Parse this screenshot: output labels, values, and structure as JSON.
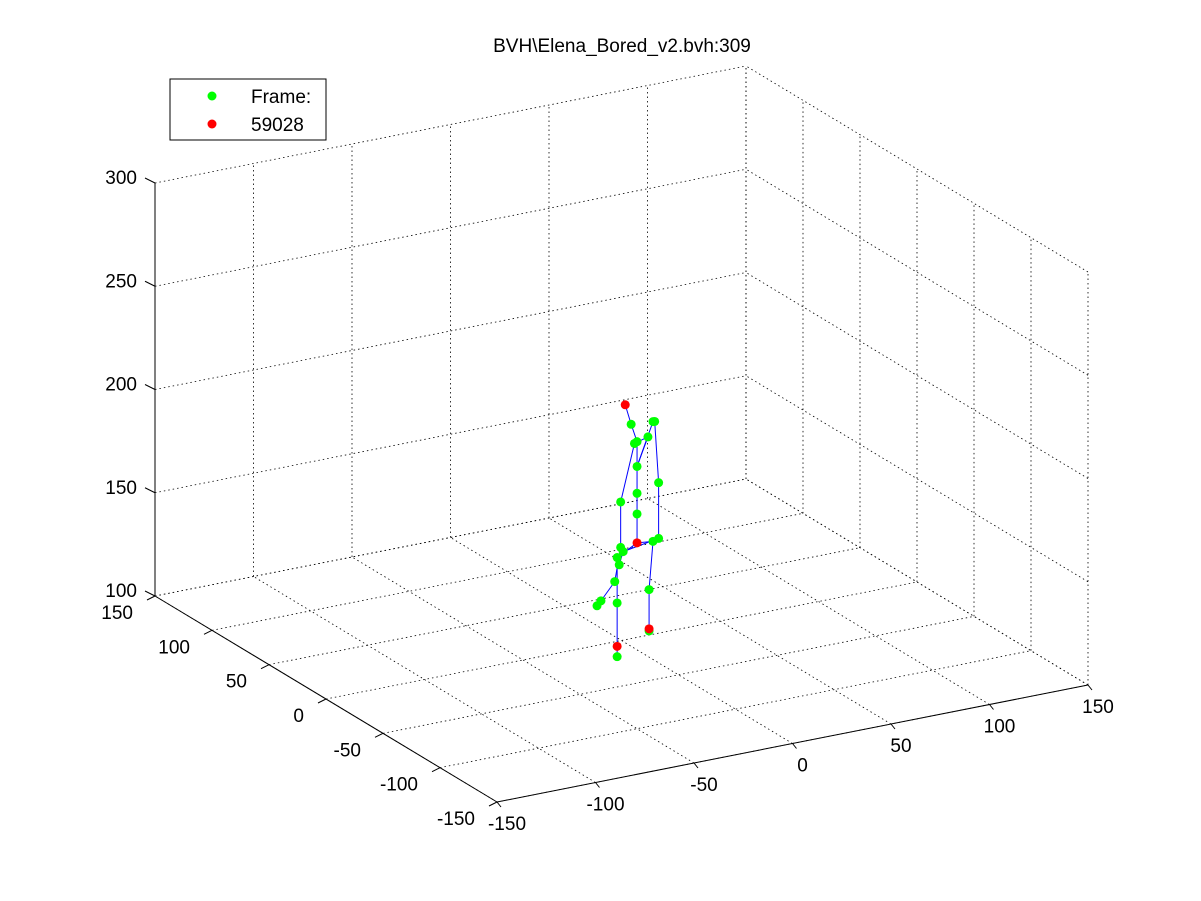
{
  "chart_data": {
    "type": "scatter",
    "plot_kind": "3d-skeleton",
    "title": "BVH\\Elena_Bored_v2.bvh:309",
    "xlim": [
      -150,
      150
    ],
    "ylim": [
      -150,
      150
    ],
    "zlim": [
      100,
      300
    ],
    "x_ticks": [
      "-150",
      "-100",
      "-50",
      "0",
      "50",
      "100",
      "150"
    ],
    "y_ticks": [
      "-150",
      "-100",
      "-50",
      "0",
      "50",
      "100",
      "150"
    ],
    "z_ticks": [
      "100",
      "150",
      "200",
      "250",
      "300"
    ],
    "grid": true,
    "legend_position": "top-left",
    "legend": [
      {
        "label": "Frame:",
        "color": "#00ff00"
      },
      {
        "label": "59028",
        "color": "#ff0000"
      }
    ],
    "colors": {
      "joint": "#00ff00",
      "end_site": "#ff0000",
      "bone": "#0000ff",
      "grid": "#000000"
    },
    "joints": [
      {
        "id": "hips",
        "x": 5,
        "y": -5,
        "z": 148,
        "kind": "root"
      },
      {
        "id": "spine",
        "x": 5,
        "y": -5,
        "z": 162,
        "kind": "joint"
      },
      {
        "id": "spine1",
        "x": 5,
        "y": -5,
        "z": 172,
        "kind": "joint"
      },
      {
        "id": "spine2",
        "x": 5,
        "y": -5,
        "z": 185,
        "kind": "joint"
      },
      {
        "id": "neck",
        "x": 5,
        "y": -5,
        "z": 197,
        "kind": "joint"
      },
      {
        "id": "head",
        "x": 2,
        "y": -5,
        "z": 206,
        "kind": "joint"
      },
      {
        "id": "head_end",
        "x": -1,
        "y": -5,
        "z": 216,
        "kind": "end"
      },
      {
        "id": "l_shoulder",
        "x": 16,
        "y": 0,
        "z": 203,
        "kind": "joint"
      },
      {
        "id": "l_arm",
        "x": 18,
        "y": 2,
        "z": 202,
        "kind": "joint"
      },
      {
        "id": "l_forearm",
        "x": 20,
        "y": 2,
        "z": 172,
        "kind": "joint"
      },
      {
        "id": "l_hand",
        "x": 20,
        "y": 2,
        "z": 145,
        "kind": "joint"
      },
      {
        "id": "l_handend",
        "x": 2,
        "y": 2,
        "z": 142,
        "kind": "joint"
      },
      {
        "id": "l_fingers",
        "x": 0,
        "y": 2,
        "z": 136,
        "kind": "joint"
      },
      {
        "id": "r_shoulder",
        "x": 3,
        "y": -18,
        "z": 204,
        "kind": "joint"
      },
      {
        "id": "r_arm",
        "x": -5,
        "y": -20,
        "z": 203,
        "kind": "joint"
      },
      {
        "id": "r_forearm",
        "x": -12,
        "y": -20,
        "z": 176,
        "kind": "joint"
      },
      {
        "id": "r_hand",
        "x": -12,
        "y": -20,
        "z": 154,
        "kind": "joint"
      },
      {
        "id": "r_handend",
        "x": -15,
        "y": -20,
        "z": 138,
        "kind": "joint"
      },
      {
        "id": "r_fingers",
        "x": -22,
        "y": -20,
        "z": 130,
        "kind": "joint"
      },
      {
        "id": "r_fingers2",
        "x": -24,
        "y": -20,
        "z": 128,
        "kind": "joint"
      },
      {
        "id": "l_upleg",
        "x": 16,
        "y": 0,
        "z": 145,
        "kind": "joint"
      },
      {
        "id": "l_leg",
        "x": 14,
        "y": 0,
        "z": 122,
        "kind": "joint"
      },
      {
        "id": "l_foot",
        "x": 14,
        "y": 0,
        "z": 102,
        "kind": "joint"
      },
      {
        "id": "l_toe",
        "x": 14,
        "y": 0,
        "z": 103,
        "kind": "end"
      },
      {
        "id": "r_upleg",
        "x": -8,
        "y": -10,
        "z": 145,
        "kind": "joint"
      },
      {
        "id": "r_leg",
        "x": -8,
        "y": -10,
        "z": 123,
        "kind": "joint"
      },
      {
        "id": "r_foot",
        "x": -8,
        "y": -10,
        "z": 102,
        "kind": "end"
      },
      {
        "id": "r_toe",
        "x": -8,
        "y": -10,
        "z": 97,
        "kind": "joint"
      }
    ],
    "bones": [
      [
        "hips",
        "spine"
      ],
      [
        "spine",
        "spine1"
      ],
      [
        "spine1",
        "spine2"
      ],
      [
        "spine2",
        "neck"
      ],
      [
        "neck",
        "head"
      ],
      [
        "head",
        "head_end"
      ],
      [
        "spine2",
        "l_shoulder"
      ],
      [
        "l_shoulder",
        "l_arm"
      ],
      [
        "l_arm",
        "l_forearm"
      ],
      [
        "l_forearm",
        "l_hand"
      ],
      [
        "l_hand",
        "l_handend"
      ],
      [
        "l_handend",
        "l_fingers"
      ],
      [
        "spine2",
        "r_shoulder"
      ],
      [
        "r_shoulder",
        "r_arm"
      ],
      [
        "r_arm",
        "r_forearm"
      ],
      [
        "r_forearm",
        "r_hand"
      ],
      [
        "r_hand",
        "r_handend"
      ],
      [
        "r_handend",
        "r_fingers"
      ],
      [
        "r_fingers",
        "r_fingers2"
      ],
      [
        "hips",
        "l_upleg"
      ],
      [
        "l_upleg",
        "l_leg"
      ],
      [
        "l_leg",
        "l_foot"
      ],
      [
        "l_foot",
        "l_toe"
      ],
      [
        "hips",
        "r_upleg"
      ],
      [
        "r_upleg",
        "r_leg"
      ],
      [
        "r_leg",
        "r_foot"
      ],
      [
        "r_foot",
        "r_toe"
      ]
    ]
  }
}
